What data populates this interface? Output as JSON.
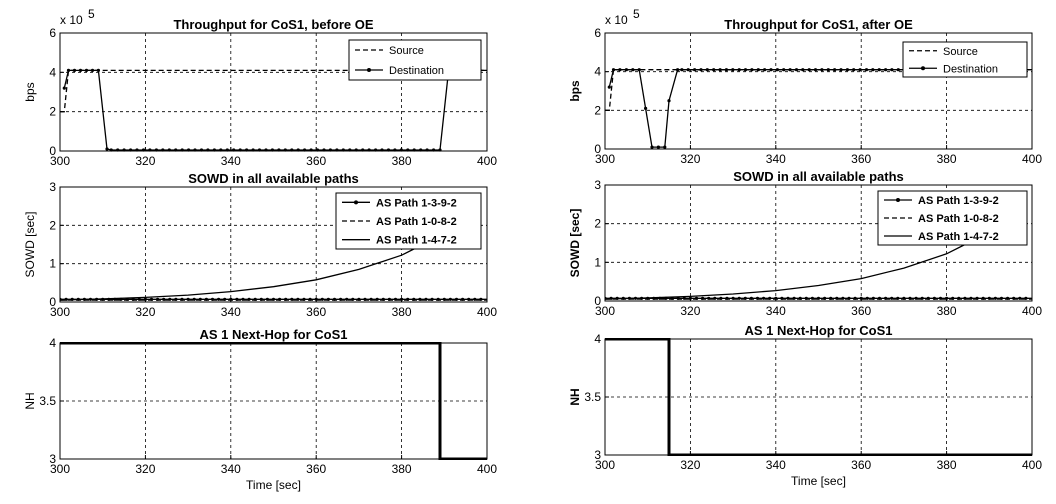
{
  "chart_data": [
    {
      "id": "left_throughput",
      "type": "line",
      "title": "Throughput for CoS1, before OE",
      "ylabel": "bps",
      "xlabel": "",
      "exponent_label": "x 10",
      "exponent_power": "5",
      "xlim": [
        300,
        400
      ],
      "ylim": [
        0,
        6
      ],
      "xticks": [
        "300",
        "320",
        "340",
        "360",
        "380",
        "400"
      ],
      "yticks": [
        "0",
        "2",
        "4",
        "6"
      ],
      "xtick_values": [
        300,
        320,
        340,
        360,
        380,
        400
      ],
      "ytick_values": [
        0,
        2,
        4,
        6
      ],
      "grid": true,
      "legend": "top-right",
      "series": [
        {
          "name": "Source",
          "style": "dashed",
          "marker": false,
          "x": [
            300,
            301,
            302,
            400
          ],
          "y": [
            2,
            2,
            4.1,
            4.1
          ]
        },
        {
          "name": "Destination",
          "style": "solid",
          "marker": true,
          "x": [
            301,
            302,
            309,
            311,
            312,
            389,
            391,
            392,
            400
          ],
          "y": [
            3.2,
            4.1,
            4.1,
            0.1,
            0.05,
            0.05,
            4.1,
            4.1,
            4.1
          ]
        }
      ]
    },
    {
      "id": "left_sowd",
      "type": "line",
      "title": "SOWD in all available paths",
      "ylabel": "SOWD [sec]",
      "xlabel": "",
      "xlim": [
        300,
        400
      ],
      "ylim": [
        0,
        3
      ],
      "xticks": [
        "300",
        "320",
        "340",
        "360",
        "380",
        "400"
      ],
      "yticks": [
        "0",
        "1",
        "2",
        "3"
      ],
      "xtick_values": [
        300,
        320,
        340,
        360,
        380,
        400
      ],
      "ytick_values": [
        0,
        1,
        2,
        3
      ],
      "grid": true,
      "legend": "top-right",
      "series": [
        {
          "name": "AS Path 1-3-9-2",
          "style": "solid",
          "marker": true,
          "x": [
            300,
            310,
            320,
            330,
            340,
            350,
            360,
            370,
            380,
            390,
            400
          ],
          "y": [
            0.07,
            0.07,
            0.07,
            0.07,
            0.07,
            0.07,
            0.07,
            0.07,
            0.07,
            0.07,
            0.07
          ]
        },
        {
          "name": "AS Path 1-0-8-2",
          "style": "dashed",
          "marker": false,
          "x": [
            300,
            400
          ],
          "y": [
            0.05,
            0.05
          ]
        },
        {
          "name": "AS Path 1-4-7-2",
          "style": "solid",
          "marker": false,
          "x": [
            300,
            310,
            320,
            330,
            340,
            350,
            360,
            370,
            380,
            385
          ],
          "y": [
            0.05,
            0.08,
            0.12,
            0.18,
            0.27,
            0.4,
            0.58,
            0.85,
            1.22,
            1.5
          ]
        }
      ]
    },
    {
      "id": "left_nh",
      "type": "line",
      "title": "AS 1 Next-Hop for CoS1",
      "ylabel": "NH",
      "xlabel": "Time [sec]",
      "xlim": [
        300,
        400
      ],
      "ylim": [
        3,
        4
      ],
      "xticks": [
        "300",
        "320",
        "340",
        "360",
        "380",
        "400"
      ],
      "yticks": [
        "3",
        "3.5",
        "4"
      ],
      "xtick_values": [
        300,
        320,
        340,
        360,
        380,
        400
      ],
      "ytick_values": [
        3,
        3.5,
        4
      ],
      "grid": true,
      "legend": "none",
      "series": [
        {
          "name": "",
          "style": "thick",
          "marker": false,
          "x": [
            300,
            389,
            389,
            400
          ],
          "y": [
            4,
            4,
            3,
            3
          ]
        }
      ]
    },
    {
      "id": "right_throughput",
      "type": "line",
      "title": "Throughput for CoS1, after OE",
      "ylabel": "bps",
      "xlabel": "",
      "exponent_label": "x 10",
      "exponent_power": "5",
      "xlim": [
        300,
        400
      ],
      "ylim": [
        0,
        6
      ],
      "xticks": [
        "300",
        "320",
        "340",
        "360",
        "380",
        "400"
      ],
      "yticks": [
        "0",
        "2",
        "4",
        "6"
      ],
      "xtick_values": [
        300,
        320,
        340,
        360,
        380,
        400
      ],
      "ytick_values": [
        0,
        2,
        4,
        6
      ],
      "grid": true,
      "legend": "top-right",
      "series": [
        {
          "name": "Source",
          "style": "dashed",
          "marker": false,
          "x": [
            300,
            301,
            302,
            400
          ],
          "y": [
            2,
            2,
            4.1,
            4.1
          ]
        },
        {
          "name": "Destination",
          "style": "solid",
          "marker": true,
          "x": [
            301,
            302,
            308,
            311,
            314,
            315,
            317,
            318,
            400
          ],
          "y": [
            3.2,
            4.1,
            4.1,
            0.1,
            0.1,
            2.5,
            4.1,
            4.1,
            4.1
          ]
        }
      ]
    },
    {
      "id": "right_sowd",
      "type": "line",
      "title": "SOWD in all available paths",
      "ylabel": "SOWD [sec]",
      "xlabel": "",
      "xlim": [
        300,
        400
      ],
      "ylim": [
        0,
        3
      ],
      "xticks": [
        "300",
        "320",
        "340",
        "360",
        "380",
        "400"
      ],
      "yticks": [
        "0",
        "1",
        "2",
        "3"
      ],
      "xtick_values": [
        300,
        320,
        340,
        360,
        380,
        400
      ],
      "ytick_values": [
        0,
        1,
        2,
        3
      ],
      "grid": true,
      "legend": "top-right",
      "series": [
        {
          "name": "AS Path 1-3-9-2",
          "style": "solid",
          "marker": true,
          "x": [
            300,
            310,
            320,
            330,
            340,
            350,
            360,
            370,
            380,
            390,
            400
          ],
          "y": [
            0.07,
            0.07,
            0.07,
            0.07,
            0.07,
            0.07,
            0.07,
            0.07,
            0.07,
            0.07,
            0.07
          ]
        },
        {
          "name": "AS Path 1-0-8-2",
          "style": "dashed",
          "marker": false,
          "x": [
            300,
            400
          ],
          "y": [
            0.05,
            0.05
          ]
        },
        {
          "name": "AS Path 1-4-7-2",
          "style": "solid",
          "marker": false,
          "x": [
            300,
            310,
            320,
            330,
            340,
            350,
            360,
            370,
            380,
            385
          ],
          "y": [
            0.05,
            0.08,
            0.12,
            0.18,
            0.27,
            0.4,
            0.58,
            0.85,
            1.22,
            1.5
          ]
        }
      ]
    },
    {
      "id": "right_nh",
      "type": "line",
      "title": "AS 1 Next-Hop for CoS1",
      "ylabel": "NH",
      "xlabel": "Time [sec]",
      "xlim": [
        300,
        400
      ],
      "ylim": [
        3,
        4
      ],
      "xticks": [
        "300",
        "320",
        "340",
        "360",
        "380",
        "400"
      ],
      "yticks": [
        "3",
        "3.5",
        "4"
      ],
      "xtick_values": [
        300,
        320,
        340,
        360,
        380,
        400
      ],
      "ytick_values": [
        3,
        3.5,
        4
      ],
      "grid": true,
      "legend": "none",
      "series": [
        {
          "name": "",
          "style": "thick",
          "marker": false,
          "x": [
            300,
            315,
            315,
            400
          ],
          "y": [
            4,
            4,
            3,
            3
          ]
        }
      ]
    }
  ]
}
